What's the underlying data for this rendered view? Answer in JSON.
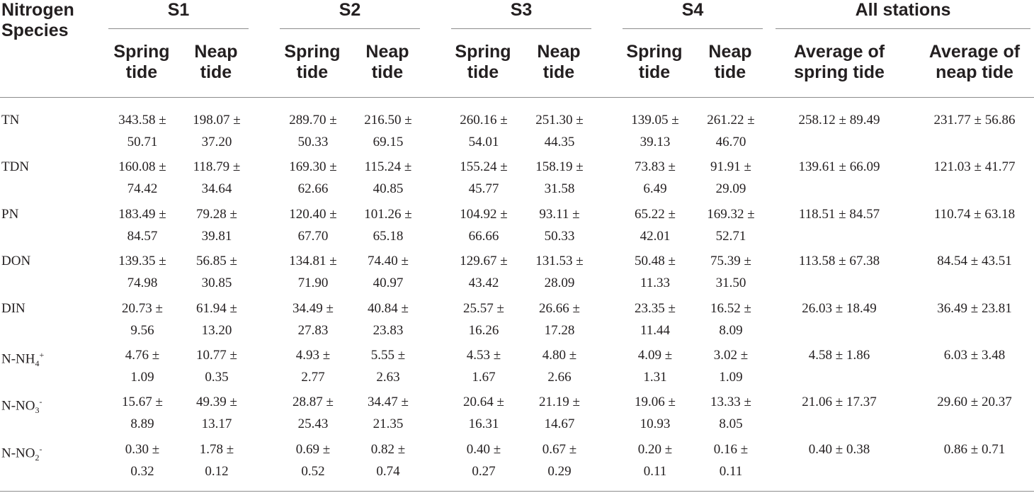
{
  "table": {
    "header": {
      "species_line1": "Nitrogen",
      "species_line2": "Species",
      "stations": [
        "S1",
        "S2",
        "S3",
        "S4"
      ],
      "spring_line1": "Spring",
      "spring_line2": "tide",
      "neap_line1": "Neap",
      "neap_line2": "tide",
      "all_stations": "All stations",
      "avg_spring_line1": "Average of",
      "avg_spring_line2": "spring tide",
      "avg_neap_line1": "Average of",
      "avg_neap_line2": "neap tide"
    },
    "rows": [
      {
        "species": "TN",
        "cells": [
          [
            "343.58 ±",
            "50.71"
          ],
          [
            "198.07 ±",
            "37.20"
          ],
          [
            "289.70 ±",
            "50.33"
          ],
          [
            "216.50 ±",
            "69.15"
          ],
          [
            "260.16 ±",
            "54.01"
          ],
          [
            "251.30 ±",
            "44.35"
          ],
          [
            "139.05 ±",
            "39.13"
          ],
          [
            "261.22 ±",
            "46.70"
          ]
        ],
        "avg_spring": "258.12 ± 89.49",
        "avg_neap": "231.77 ± 56.86"
      },
      {
        "species": "TDN",
        "cells": [
          [
            "160.08 ±",
            "74.42"
          ],
          [
            "118.79 ±",
            "34.64"
          ],
          [
            "169.30 ±",
            "62.66"
          ],
          [
            "115.24 ±",
            "40.85"
          ],
          [
            "155.24 ±",
            "45.77"
          ],
          [
            "158.19 ±",
            "31.58"
          ],
          [
            "73.83 ±",
            "6.49"
          ],
          [
            "91.91 ±",
            "29.09"
          ]
        ],
        "avg_spring": "139.61 ± 66.09",
        "avg_neap": "121.03 ± 41.77"
      },
      {
        "species": "PN",
        "cells": [
          [
            "183.49 ±",
            "84.57"
          ],
          [
            "79.28 ±",
            "39.81"
          ],
          [
            "120.40 ±",
            "67.70"
          ],
          [
            "101.26 ±",
            "65.18"
          ],
          [
            "104.92 ±",
            "66.66"
          ],
          [
            "93.11 ±",
            "50.33"
          ],
          [
            "65.22 ±",
            "42.01"
          ],
          [
            "169.32 ±",
            "52.71"
          ]
        ],
        "avg_spring": "118.51 ± 84.57",
        "avg_neap": "110.74 ± 63.18"
      },
      {
        "species": "DON",
        "cells": [
          [
            "139.35 ±",
            "74.98"
          ],
          [
            "56.85 ±",
            "30.85"
          ],
          [
            "134.81 ±",
            "71.90"
          ],
          [
            "74.40 ±",
            "40.97"
          ],
          [
            "129.67 ±",
            "43.42"
          ],
          [
            "131.53 ±",
            "28.09"
          ],
          [
            "50.48 ±",
            "11.33"
          ],
          [
            "75.39 ±",
            "31.50"
          ]
        ],
        "avg_spring": "113.58 ± 67.38",
        "avg_neap": "84.54 ± 43.51"
      },
      {
        "species": "DIN",
        "cells": [
          [
            "20.73 ±",
            "9.56"
          ],
          [
            "61.94 ±",
            "13.20"
          ],
          [
            "34.49 ±",
            "27.83"
          ],
          [
            "40.84 ±",
            "23.83"
          ],
          [
            "25.57 ±",
            "16.26"
          ],
          [
            "26.66 ±",
            "17.28"
          ],
          [
            "23.35 ±",
            "11.44"
          ],
          [
            "16.52 ±",
            "8.09"
          ]
        ],
        "avg_spring": "26.03 ± 18.49",
        "avg_neap": "36.49 ± 23.81"
      },
      {
        "species": "N-NH",
        "sub": "4",
        "sup": "+",
        "cells": [
          [
            "4.76 ±",
            "1.09"
          ],
          [
            "10.77 ±",
            "0.35"
          ],
          [
            "4.93 ±",
            "2.77"
          ],
          [
            "5.55 ±",
            "2.63"
          ],
          [
            "4.53 ±",
            "1.67"
          ],
          [
            "4.80 ±",
            "2.66"
          ],
          [
            "4.09 ±",
            "1.31"
          ],
          [
            "3.02 ±",
            "1.09"
          ]
        ],
        "avg_spring": "4.58 ± 1.86",
        "avg_neap": "6.03 ± 3.48"
      },
      {
        "species": "N-NO",
        "sub": "3",
        "sup": "-",
        "cells": [
          [
            "15.67 ±",
            "8.89"
          ],
          [
            "49.39 ±",
            "13.17"
          ],
          [
            "28.87 ±",
            "25.43"
          ],
          [
            "34.47 ±",
            "21.35"
          ],
          [
            "20.64 ±",
            "16.31"
          ],
          [
            "21.19 ±",
            "14.67"
          ],
          [
            "19.06 ±",
            "10.93"
          ],
          [
            "13.33 ±",
            "8.05"
          ]
        ],
        "avg_spring": "21.06 ± 17.37",
        "avg_neap": "29.60 ± 20.37"
      },
      {
        "species": "N-NO",
        "sub": "2",
        "sup": "-",
        "cells": [
          [
            "0.30 ±",
            "0.32"
          ],
          [
            "1.78 ±",
            "0.12"
          ],
          [
            "0.69 ±",
            "0.52"
          ],
          [
            "0.82 ±",
            "0.74"
          ],
          [
            "0.40 ±",
            "0.27"
          ],
          [
            "0.67 ±",
            "0.29"
          ],
          [
            "0.20 ±",
            "0.11"
          ],
          [
            "0.16 ±",
            "0.11"
          ]
        ],
        "avg_spring": "0.40 ± 0.38",
        "avg_neap": "0.86 ± 0.71"
      }
    ]
  }
}
